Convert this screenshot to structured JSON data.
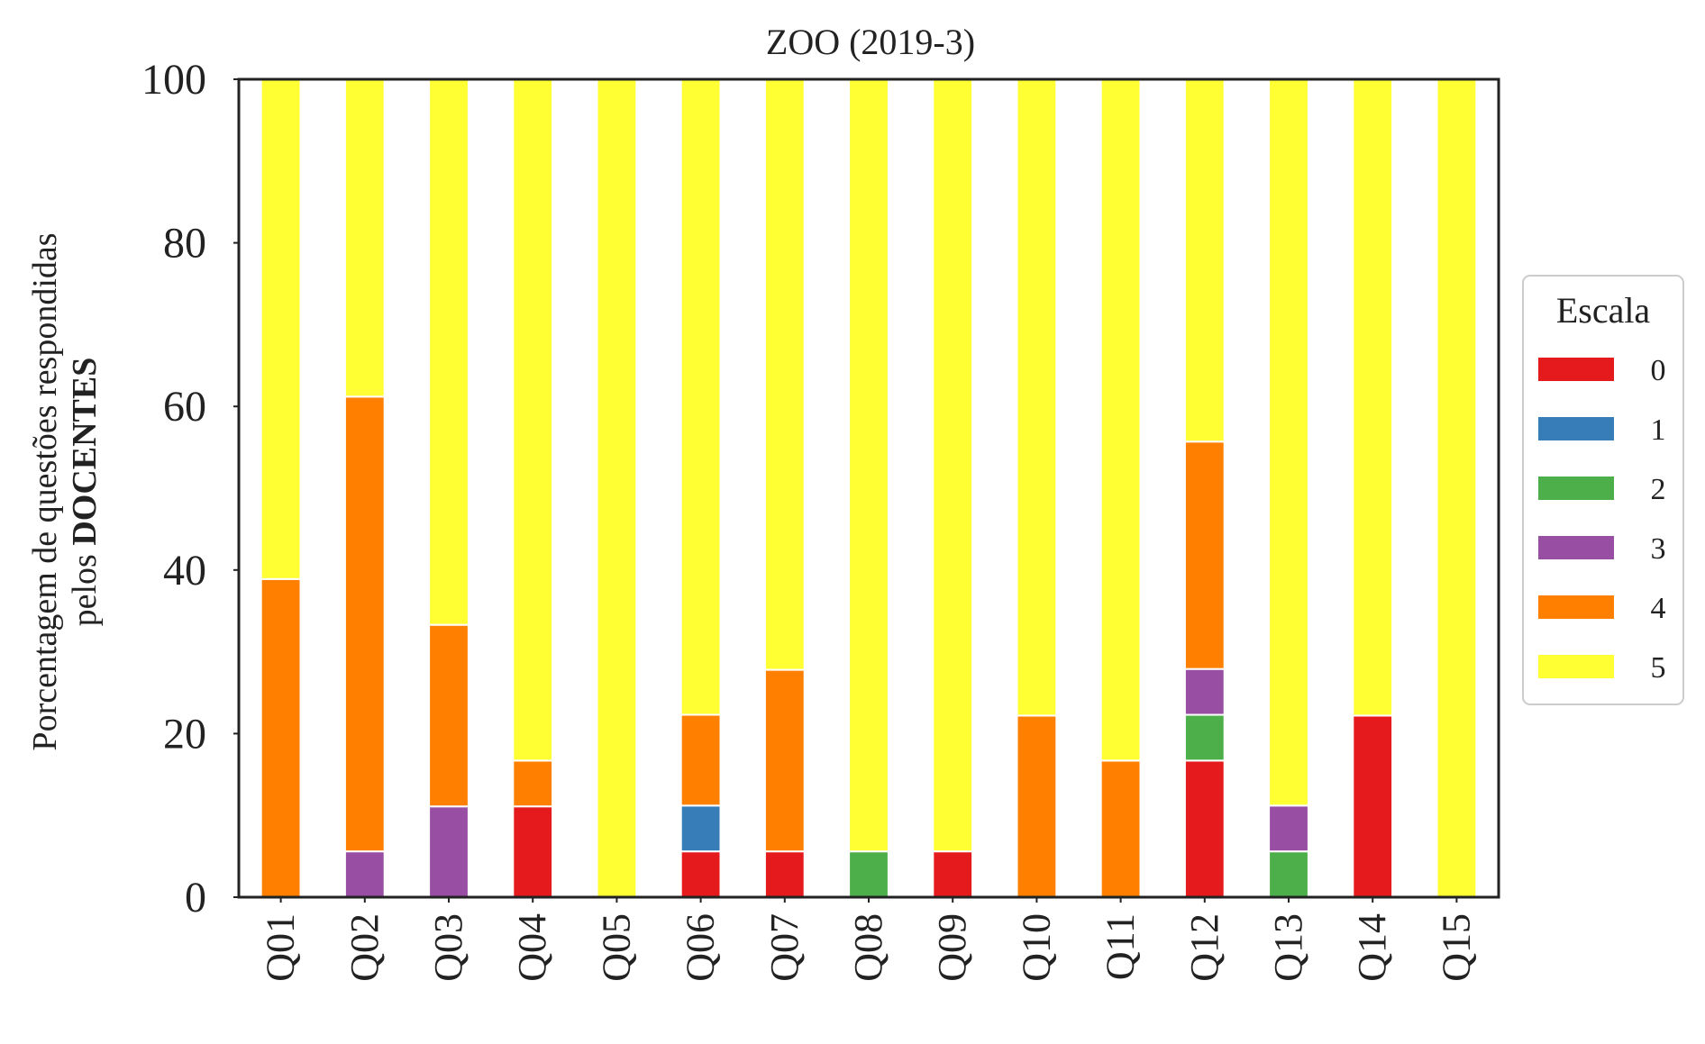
{
  "chart_data": {
    "type": "bar",
    "stacked": true,
    "title": "ZOO (2019-3)",
    "ylabel_line1": "Porcentagem de questões respondidas",
    "ylabel_line2_prefix": "pelos ",
    "ylabel_line2_bold": "DOCENTES",
    "xlabel": "",
    "ylim": [
      0,
      100
    ],
    "yticks": [
      0,
      20,
      40,
      60,
      80,
      100
    ],
    "grid": false,
    "legend_title": "Escala",
    "legend_position": "right",
    "categories": [
      "Q01",
      "Q02",
      "Q03",
      "Q04",
      "Q05",
      "Q06",
      "Q07",
      "Q08",
      "Q09",
      "Q10",
      "Q11",
      "Q12",
      "Q13",
      "Q14",
      "Q15"
    ],
    "series": [
      {
        "name": "0",
        "color": "#e41a1c",
        "values": [
          0,
          0,
          0,
          11.1,
          0,
          5.6,
          5.6,
          0,
          5.6,
          0,
          0,
          16.7,
          0,
          22.2,
          0
        ]
      },
      {
        "name": "1",
        "color": "#377eb8",
        "values": [
          0,
          0,
          0,
          0,
          0,
          5.6,
          0,
          0,
          0,
          0,
          0,
          0,
          0,
          0,
          0
        ]
      },
      {
        "name": "2",
        "color": "#4daf4a",
        "values": [
          0,
          0,
          0,
          0,
          0,
          0,
          0,
          5.6,
          0,
          0,
          0,
          5.6,
          5.6,
          0,
          0
        ]
      },
      {
        "name": "3",
        "color": "#984ea3",
        "values": [
          0,
          5.6,
          11.1,
          0,
          0,
          0,
          0,
          0,
          0,
          0,
          0,
          5.6,
          5.6,
          0,
          0
        ]
      },
      {
        "name": "4",
        "color": "#ff7f00",
        "values": [
          38.9,
          55.6,
          22.2,
          5.6,
          0,
          11.1,
          22.2,
          0,
          0,
          22.2,
          16.7,
          27.8,
          0,
          0,
          0
        ]
      },
      {
        "name": "5",
        "color": "#ffff33",
        "values": [
          61.1,
          38.9,
          66.7,
          83.3,
          100,
          77.8,
          72.2,
          94.4,
          94.4,
          77.8,
          83.3,
          44.4,
          88.9,
          77.8,
          100
        ]
      }
    ]
  }
}
